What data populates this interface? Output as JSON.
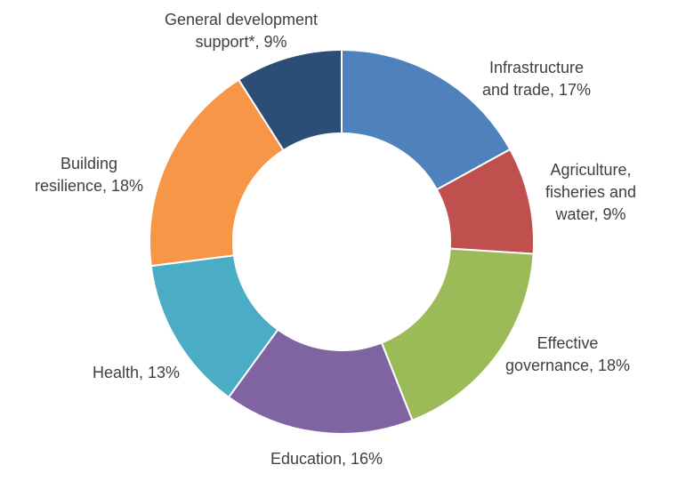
{
  "chart_data": {
    "type": "pie",
    "donut": true,
    "slices": [
      {
        "label_lines": [
          "Infrastructure",
          "and trade, 17%"
        ],
        "value": 17,
        "color": "#4F81BD"
      },
      {
        "label_lines": [
          "Agriculture,",
          "fisheries and",
          "water, 9%"
        ],
        "value": 9,
        "color": "#C0504D"
      },
      {
        "label_lines": [
          "Effective",
          "governance, 18%"
        ],
        "value": 18,
        "color": "#9BBB59"
      },
      {
        "label_lines": [
          "Education, 16%"
        ],
        "value": 16,
        "color": "#8064A2"
      },
      {
        "label_lines": [
          "Health, 13%"
        ],
        "value": 13,
        "color": "#4BACC6"
      },
      {
        "label_lines": [
          "Building",
          "resilience, 18%"
        ],
        "value": 18,
        "color": "#F79646"
      },
      {
        "label_lines": [
          "General development",
          "support*, 9%"
        ],
        "value": 9,
        "color": "#2C4D75"
      }
    ]
  }
}
